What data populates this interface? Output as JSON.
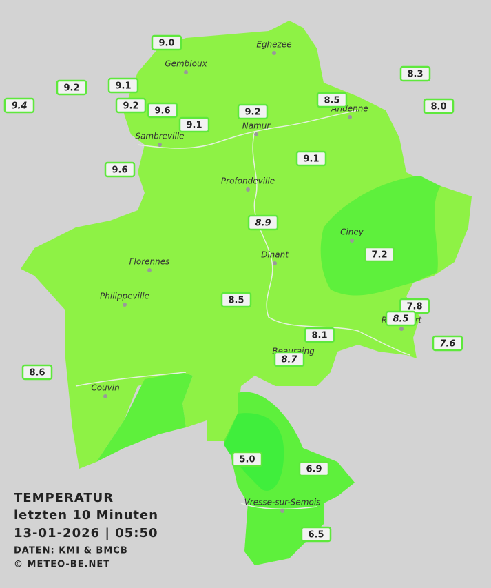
{
  "title": {
    "heading": "TEMPERATUR",
    "period": "letzten 10 Minuten",
    "datetime": "13-01-2026  |  05:50",
    "source": "DATEN: KMI & BMCB",
    "copyright": "© METEO-BE.NET"
  },
  "cities": [
    "Eghezee",
    "Gembloux",
    "Andenne",
    "Namur",
    "Sambreville",
    "Profondeville",
    "Ciney",
    "Dinant",
    "Florennes",
    "Philippeville",
    "Rochefort",
    "Beauraing",
    "Couvin",
    "Vresse-sur-Semois"
  ],
  "stations": [
    "9.0",
    "9.2",
    "9.1",
    "9.4",
    "9.2",
    "9.6",
    "9.1",
    "9.2",
    "8.5",
    "8.3",
    "8.0",
    "9.6",
    "9.1",
    "8.9",
    "7.2",
    "8.5",
    "7.8",
    "8.5",
    "8.1",
    "7.6",
    "8.7",
    "8.6",
    "5.0",
    "6.9",
    "6.5"
  ]
}
